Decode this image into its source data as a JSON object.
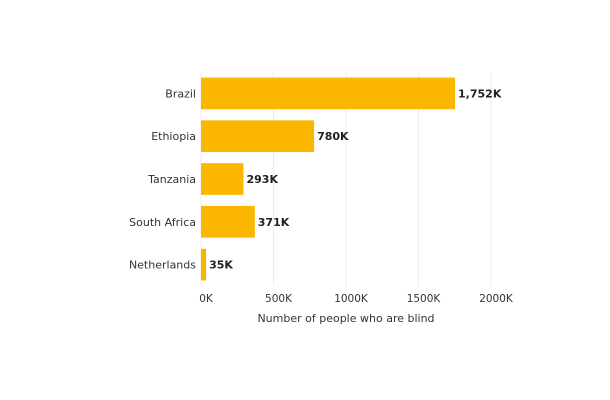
{
  "chart_data": {
    "type": "bar",
    "orientation": "horizontal",
    "title": "",
    "xlabel": "Number of people who are blind",
    "ylabel": "",
    "categories": [
      "Brazil",
      "Ethiopia",
      "Tanzania",
      "South Africa",
      "Netherlands"
    ],
    "values": [
      1752000,
      780000,
      293000,
      371000,
      35000
    ],
    "value_labels": [
      "1,752K",
      "780K",
      "293K",
      "371K",
      "35K"
    ],
    "xlim": [
      0,
      2000000
    ],
    "xticks": [
      0,
      500000,
      1000000,
      1500000,
      2000000
    ],
    "xtick_labels": [
      "0K",
      "500K",
      "1000K",
      "1500K",
      "2000K"
    ],
    "grid": "vertical",
    "legend": "none",
    "bar_color": "#FBB600"
  }
}
